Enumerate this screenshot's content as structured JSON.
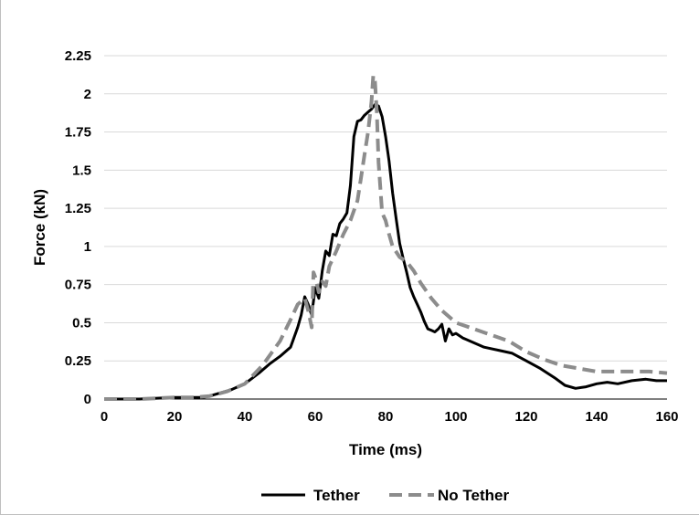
{
  "chart_data": {
    "type": "line",
    "title": "",
    "xlabel": "Time (ms)",
    "ylabel": "Force (kN)",
    "xlim": [
      0,
      160
    ],
    "ylim": [
      0,
      2.25
    ],
    "xticks": [
      0,
      20,
      40,
      60,
      80,
      100,
      120,
      140,
      160
    ],
    "xtick_labels": [
      "0",
      "20",
      "40",
      "60",
      "80",
      "100",
      "120",
      "140",
      "160"
    ],
    "yticks": [
      0,
      0.25,
      0.5,
      0.75,
      1,
      1.25,
      1.5,
      1.75,
      2,
      2.25
    ],
    "ytick_labels": [
      "0",
      "0.25",
      "0.5",
      "0.75",
      "1",
      "1.25",
      "1.5",
      "1.75",
      "2",
      "2.25"
    ],
    "grid": "horizontal",
    "legend_position": "bottom",
    "series": [
      {
        "name": "Tether",
        "color": "#000000",
        "style": "solid",
        "x": [
          0,
          10,
          20,
          25,
          28,
          30,
          33,
          36,
          40,
          44,
          47,
          50,
          53,
          55,
          56,
          57,
          58,
          59,
          60,
          61,
          62,
          63,
          64,
          65,
          66,
          67,
          68,
          69,
          70,
          71,
          72,
          73,
          74,
          75,
          76,
          77,
          78,
          79,
          80,
          81,
          82,
          83,
          84,
          85,
          86,
          87,
          88,
          89,
          90,
          91,
          92,
          93,
          94,
          95,
          96,
          97,
          98,
          99,
          100,
          102,
          105,
          108,
          112,
          116,
          120,
          124,
          128,
          131,
          134,
          137,
          140,
          143,
          146,
          150,
          154,
          157,
          160
        ],
        "y": [
          0,
          0,
          0.01,
          0.01,
          0.01,
          0.02,
          0.04,
          0.06,
          0.1,
          0.17,
          0.23,
          0.28,
          0.34,
          0.47,
          0.55,
          0.67,
          0.62,
          0.55,
          0.73,
          0.66,
          0.84,
          0.97,
          0.94,
          1.08,
          1.07,
          1.15,
          1.18,
          1.22,
          1.4,
          1.72,
          1.82,
          1.83,
          1.86,
          1.88,
          1.9,
          1.93,
          1.92,
          1.85,
          1.72,
          1.56,
          1.35,
          1.18,
          1.02,
          0.92,
          0.83,
          0.73,
          0.67,
          0.62,
          0.57,
          0.51,
          0.46,
          0.45,
          0.44,
          0.46,
          0.49,
          0.38,
          0.46,
          0.42,
          0.43,
          0.4,
          0.37,
          0.34,
          0.32,
          0.3,
          0.25,
          0.2,
          0.14,
          0.09,
          0.07,
          0.08,
          0.1,
          0.11,
          0.1,
          0.12,
          0.13,
          0.12,
          0.12
        ]
      },
      {
        "name": "No Tether",
        "color": "#8c8c8c",
        "style": "dashed",
        "x": [
          0,
          10,
          20,
          25,
          30,
          35,
          40,
          45,
          50,
          53,
          55,
          57,
          58,
          59,
          59.5,
          60,
          61,
          62,
          63,
          64,
          66,
          68,
          70,
          72,
          73,
          74,
          75,
          76,
          76.5,
          77,
          77.5,
          78,
          79,
          80,
          81,
          82,
          84,
          86,
          88,
          90,
          93,
          96,
          100,
          105,
          110,
          115,
          120,
          125,
          130,
          135,
          140,
          145,
          150,
          155,
          160
        ],
        "y": [
          0,
          0,
          0.01,
          0.01,
          0.02,
          0.05,
          0.1,
          0.22,
          0.38,
          0.52,
          0.62,
          0.66,
          0.58,
          0.47,
          0.83,
          0.8,
          0.7,
          0.77,
          0.74,
          0.87,
          0.97,
          1.08,
          1.17,
          1.3,
          1.45,
          1.6,
          1.75,
          1.95,
          2.12,
          2.08,
          1.88,
          1.55,
          1.22,
          1.17,
          1.08,
          1.0,
          0.93,
          0.9,
          0.84,
          0.76,
          0.66,
          0.58,
          0.5,
          0.46,
          0.42,
          0.38,
          0.31,
          0.26,
          0.22,
          0.2,
          0.18,
          0.18,
          0.18,
          0.18,
          0.17
        ]
      }
    ]
  }
}
